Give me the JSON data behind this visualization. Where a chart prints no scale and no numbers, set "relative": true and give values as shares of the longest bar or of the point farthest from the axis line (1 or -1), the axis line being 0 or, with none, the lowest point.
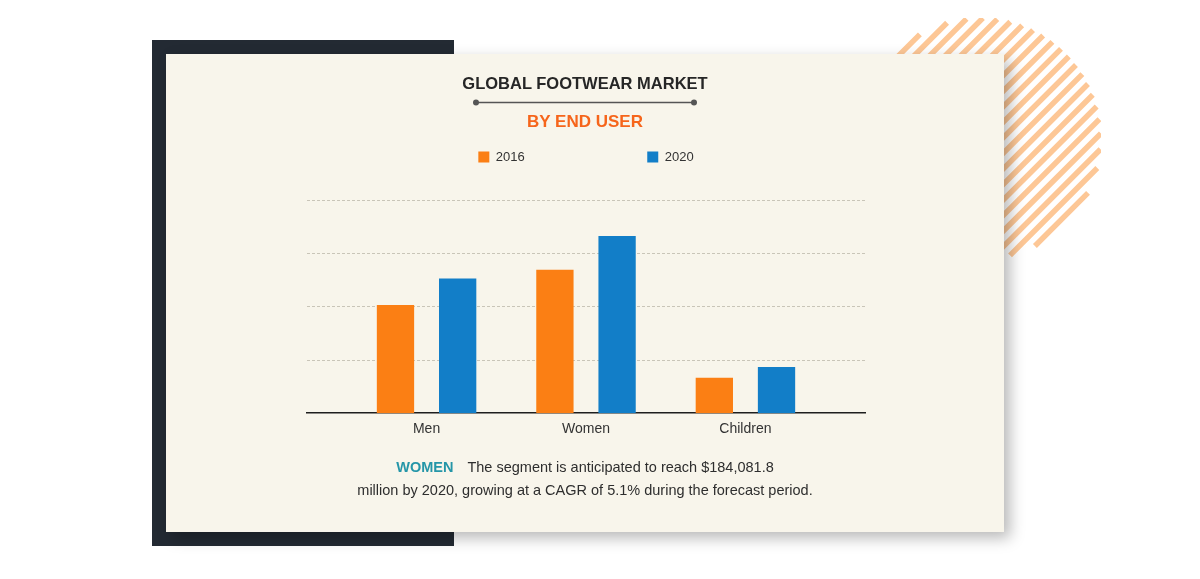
{
  "chart_data": {
    "type": "bar",
    "title": "GLOBAL FOOTWEAR MARKET",
    "subtitle": "BY END USER",
    "categories": [
      "Men",
      "Women",
      "Children"
    ],
    "series": [
      {
        "name": "2016",
        "color": "#fb7f14",
        "values": [
          0.61,
          0.81,
          0.2
        ]
      },
      {
        "name": "2020",
        "color": "#127ec8",
        "values": [
          0.76,
          1,
          0.26
        ]
      }
    ],
    "relative": true,
    "grid": "y",
    "legend": "top",
    "annotations": [
      "WOMEN",
      "The segment is anticipated to reach $184,081.8 million by 2020, growing at a CAGR of 5.1% during the forecast period."
    ]
  }
}
